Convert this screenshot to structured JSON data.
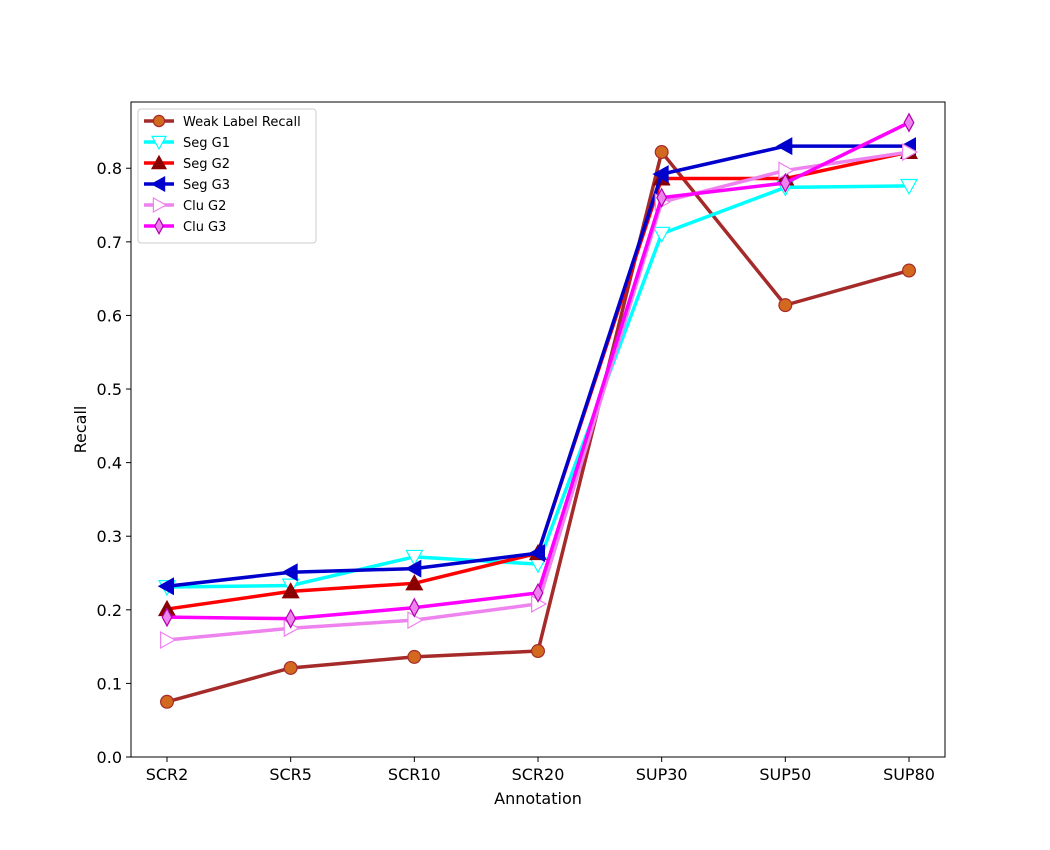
{
  "chart_data": {
    "type": "line",
    "title": "",
    "xlabel": "Annotation",
    "ylabel": "Recall",
    "categories": [
      "SCR2",
      "SCR5",
      "SCR10",
      "SCR20",
      "SUP30",
      "SUP50",
      "SUP80"
    ],
    "ylim": [
      0.0,
      0.89
    ],
    "yticks": [
      0.0,
      0.1,
      0.2,
      0.3,
      0.4,
      0.5,
      0.6,
      0.7,
      0.8
    ],
    "grid": false,
    "legend_position": "top-left",
    "series": [
      {
        "name": "Weak Label Recall",
        "values": [
          0.075,
          0.121,
          0.136,
          0.144,
          0.822,
          0.614,
          0.661
        ],
        "color": "#a52a2a",
        "marker": "circle",
        "marker_fill": "#d2691e",
        "marker_edge": "#a52a2a"
      },
      {
        "name": "Seg G1",
        "values": [
          0.231,
          0.233,
          0.272,
          0.262,
          0.711,
          0.774,
          0.776
        ],
        "color": "#00ffff",
        "marker": "triangle-down",
        "marker_fill": "#ffffff",
        "marker_edge": "#00ffff"
      },
      {
        "name": "Seg G2",
        "values": [
          0.201,
          0.225,
          0.236,
          0.277,
          0.786,
          0.786,
          0.822
        ],
        "color": "#ff0000",
        "marker": "triangle-up",
        "marker_fill": "#8b0000",
        "marker_edge": "#8b0000"
      },
      {
        "name": "Seg G3",
        "values": [
          0.232,
          0.251,
          0.256,
          0.277,
          0.792,
          0.83,
          0.83
        ],
        "color": "#0000cd",
        "marker": "triangle-left",
        "marker_fill": "#0000cd",
        "marker_edge": "#0000cd"
      },
      {
        "name": "Clu G2",
        "values": [
          0.159,
          0.175,
          0.186,
          0.208,
          0.754,
          0.797,
          0.822
        ],
        "color": "#ee82ee",
        "marker": "triangle-right",
        "marker_fill": "#ffffff",
        "marker_edge": "#ee82ee"
      },
      {
        "name": "Clu G3",
        "values": [
          0.19,
          0.188,
          0.203,
          0.223,
          0.76,
          0.78,
          0.862
        ],
        "color": "#ff00ff",
        "marker": "diamond",
        "marker_fill": "#ee82ee",
        "marker_edge": "#b000b0"
      }
    ]
  }
}
